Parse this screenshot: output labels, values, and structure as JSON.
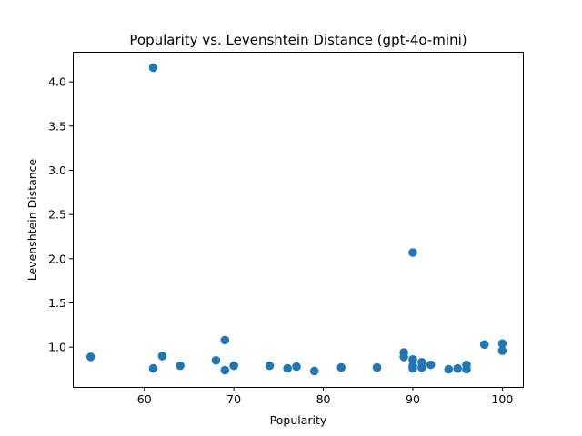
{
  "chart_data": {
    "type": "scatter",
    "title": "Popularity vs. Levenshtein Distance (gpt-4o-mini)",
    "xlabel": "Popularity",
    "ylabel": "Levenshtein Distance",
    "xlim": [
      52,
      102.3
    ],
    "ylim": [
      0.55,
      4.34
    ],
    "xticks": [
      60,
      70,
      80,
      90,
      100
    ],
    "yticks": [
      1.0,
      1.5,
      2.0,
      2.5,
      3.0,
      3.5,
      4.0
    ],
    "xtick_labels": [
      "60",
      "70",
      "80",
      "90",
      "100"
    ],
    "ytick_labels": [
      "1.0",
      "1.5",
      "2.0",
      "2.5",
      "3.0",
      "3.5",
      "4.0"
    ],
    "grid": false,
    "marker_color": "#1f77b4",
    "points": [
      {
        "x": 54,
        "y": 0.89
      },
      {
        "x": 61,
        "y": 4.16
      },
      {
        "x": 61,
        "y": 0.76
      },
      {
        "x": 62,
        "y": 0.9
      },
      {
        "x": 64,
        "y": 0.79
      },
      {
        "x": 68,
        "y": 0.85
      },
      {
        "x": 69,
        "y": 1.08
      },
      {
        "x": 69,
        "y": 0.74
      },
      {
        "x": 70,
        "y": 0.79
      },
      {
        "x": 74,
        "y": 0.79
      },
      {
        "x": 76,
        "y": 0.76
      },
      {
        "x": 77,
        "y": 0.78
      },
      {
        "x": 79,
        "y": 0.73
      },
      {
        "x": 82,
        "y": 0.77
      },
      {
        "x": 86,
        "y": 0.77
      },
      {
        "x": 89,
        "y": 0.94
      },
      {
        "x": 89,
        "y": 0.89
      },
      {
        "x": 90,
        "y": 2.07
      },
      {
        "x": 90,
        "y": 0.86
      },
      {
        "x": 90,
        "y": 0.79
      },
      {
        "x": 90,
        "y": 0.76
      },
      {
        "x": 91,
        "y": 0.83
      },
      {
        "x": 91,
        "y": 0.77
      },
      {
        "x": 92,
        "y": 0.8
      },
      {
        "x": 94,
        "y": 0.75
      },
      {
        "x": 95,
        "y": 0.76
      },
      {
        "x": 96,
        "y": 0.8
      },
      {
        "x": 96,
        "y": 0.75
      },
      {
        "x": 98,
        "y": 1.03
      },
      {
        "x": 100,
        "y": 1.04
      },
      {
        "x": 100,
        "y": 0.96
      }
    ]
  }
}
